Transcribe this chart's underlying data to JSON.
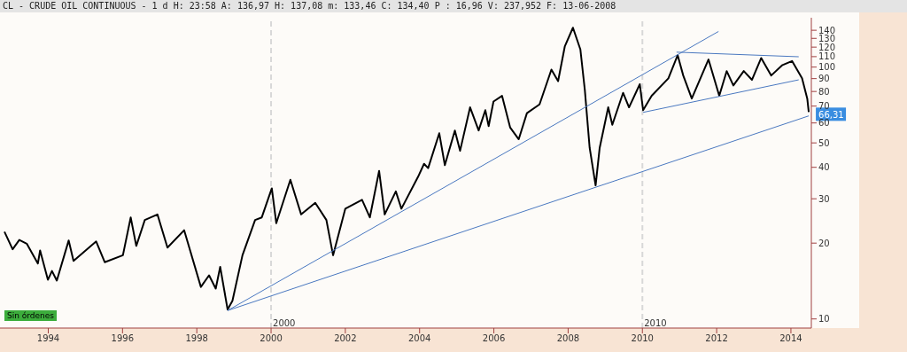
{
  "chart_data": {
    "type": "line",
    "title": "CL - CRUDE OIL CONTINUOUS -  1 d H: 23:58 A: 136,97 H: 137,08 m: 133,46 C: 134,40 P : 16,96 V: 237,952 F: 13-06-2008",
    "log": "y",
    "marker": "none",
    "line_style": "solid",
    "xlim": [
      1992.7,
      2014.55
    ],
    "xticks": [
      1994,
      1996,
      1998,
      2000,
      2002,
      2004,
      2006,
      2008,
      2010,
      2012,
      2014
    ],
    "ylim": [
      9.2,
      157
    ],
    "yticks": [
      10,
      20,
      30,
      40,
      50,
      60,
      70,
      80,
      90,
      100,
      110,
      120,
      130,
      140
    ],
    "series": [
      {
        "color": "#000000",
        "x": [
          1992.82,
          1993.04,
          1993.22,
          1993.42,
          1993.72,
          1993.78,
          1993.99,
          1994.1,
          1994.23,
          1994.55,
          1994.68,
          1995.29,
          1995.52,
          1996.01,
          1996.22,
          1996.37,
          1996.6,
          1996.94,
          1997.21,
          1997.66,
          1998.11,
          1998.33,
          1998.51,
          1998.63,
          1998.83,
          1998.96,
          1999.23,
          1999.57,
          1999.75,
          2000.02,
          2000.14,
          2000.52,
          2000.81,
          2001.19,
          2001.49,
          2001.67,
          2002.0,
          2002.45,
          2002.66,
          2002.91,
          2003.06,
          2003.36,
          2003.51,
          2003.96,
          2004.12,
          2004.23,
          2004.53,
          2004.68,
          2004.95,
          2005.09,
          2005.36,
          2005.59,
          2005.77,
          2005.86,
          2005.99,
          2006.22,
          2006.44,
          2006.67,
          2006.89,
          2007.23,
          2007.55,
          2007.73,
          2007.91,
          2008.13,
          2008.33,
          2008.45,
          2008.58,
          2008.74,
          2008.85,
          2009.08,
          2009.19,
          2009.48,
          2009.64,
          2009.93,
          2010.02,
          2010.25,
          2010.7,
          2010.95,
          2011.1,
          2011.33,
          2011.78,
          2012.07,
          2012.27,
          2012.45,
          2012.73,
          2012.95,
          2013.2,
          2013.47,
          2013.76,
          2014.03,
          2014.3,
          2014.44,
          2014.48
        ],
        "values": [
          22.2,
          18.9,
          20.6,
          19.9,
          16.6,
          18.7,
          14.3,
          15.5,
          14.2,
          20.5,
          17.0,
          20.3,
          16.8,
          17.9,
          25.3,
          19.5,
          24.7,
          26.0,
          19.2,
          22.5,
          13.4,
          14.9,
          13.2,
          16.1,
          10.9,
          11.8,
          17.9,
          24.7,
          25.3,
          33.0,
          24.0,
          35.7,
          26.0,
          28.9,
          24.7,
          17.9,
          27.4,
          29.7,
          25.3,
          38.7,
          26.0,
          32.1,
          27.4,
          36.7,
          41.3,
          39.7,
          54.6,
          40.8,
          56.0,
          46.5,
          69.2,
          56.0,
          67.4,
          58.3,
          73.0,
          76.9,
          57.5,
          51.7,
          65.6,
          71.1,
          97.7,
          87.9,
          120.7,
          143.3,
          117.5,
          81.1,
          47.8,
          33.9,
          47.8,
          69.2,
          59.0,
          79.0,
          69.2,
          85.5,
          67.4,
          76.9,
          90.2,
          111.5,
          92.6,
          75.0,
          107.2,
          76.9,
          96.4,
          84.5,
          96.4,
          89.0,
          108.6,
          92.6,
          101.6,
          105.7,
          90.2,
          75.0,
          66.31
        ]
      },
      {
        "color": "#4a78c0",
        "x": [
          1998.83,
          2012.05
        ],
        "values": [
          10.8,
          138.5
        ]
      },
      {
        "color": "#4a78c0",
        "x": [
          1998.83,
          2014.48
        ],
        "values": [
          10.8,
          64.0
        ]
      },
      {
        "color": "#4a78c0",
        "x": [
          2010.92,
          2014.21
        ],
        "values": [
          114.6,
          109.9
        ]
      },
      {
        "color": "#4a78c0",
        "x": [
          2010.02,
          2014.21
        ],
        "values": [
          66.1,
          89.0
        ]
      }
    ],
    "ref_lines": [
      {
        "axis": "x",
        "value": 2000,
        "label": "2000",
        "color": "#d8d8d8",
        "line_style": "dashed"
      },
      {
        "axis": "x",
        "value": 2010,
        "label": "2010",
        "color": "#d8d8d8",
        "line_style": "dashed"
      }
    ],
    "annotations": [
      "Sin órdenes",
      {
        "text": "66,31",
        "x": 2014.48,
        "y": 66.31
      }
    ]
  }
}
